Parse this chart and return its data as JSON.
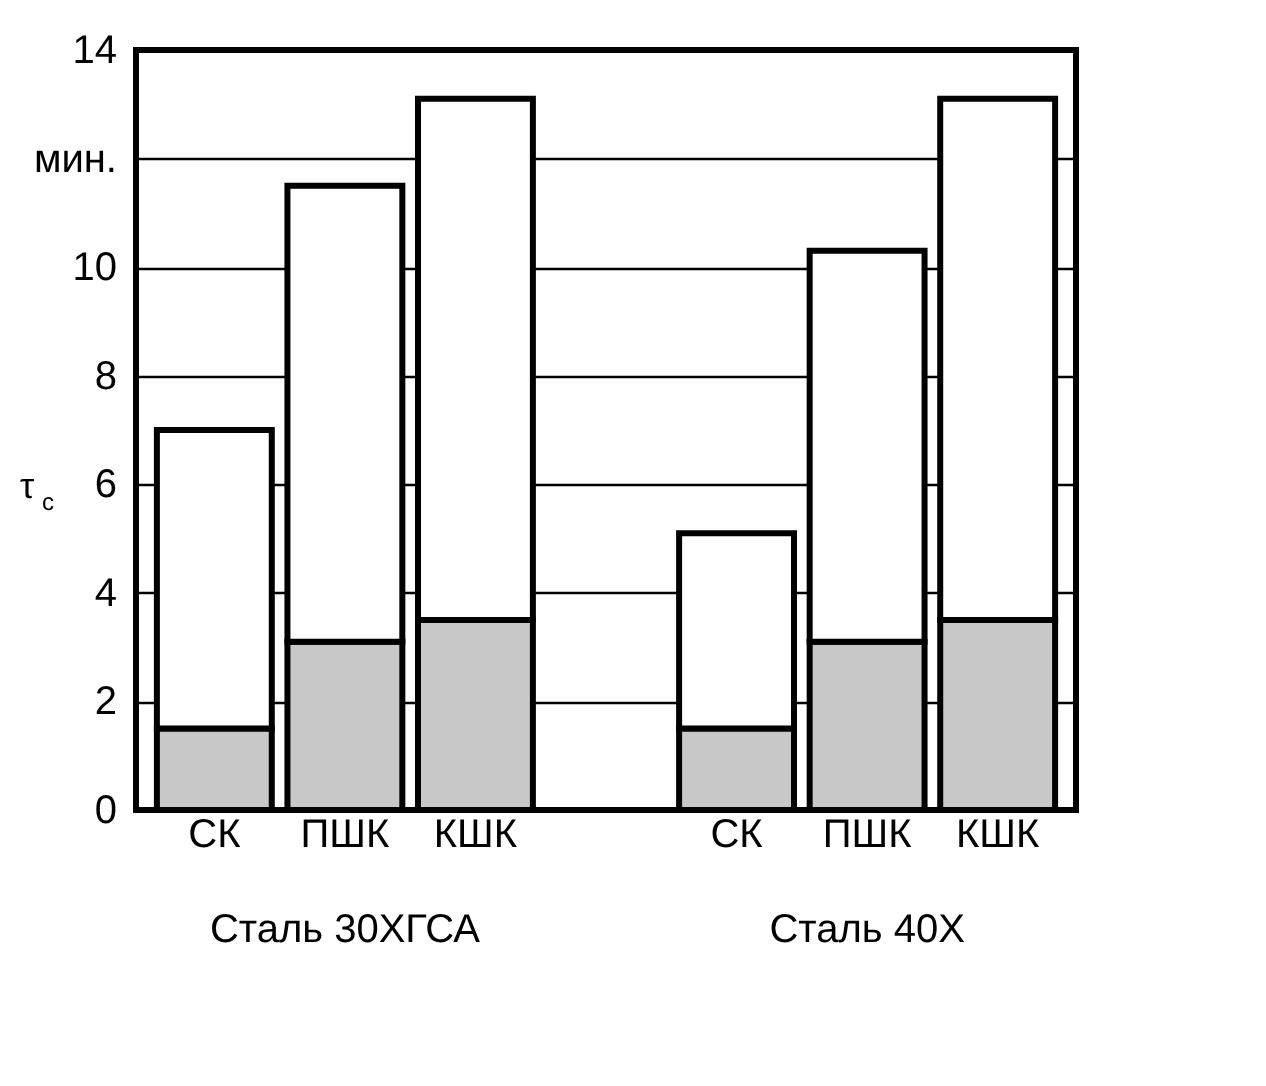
{
  "chart_data": {
    "type": "bar",
    "stacked": true,
    "categories": [
      "СК",
      "ПШК",
      "КШК",
      null,
      "СК",
      "ПШК",
      "КШК"
    ],
    "series": [
      {
        "color": "#c8c8c8",
        "values": [
          1.5,
          3.1,
          3.5,
          null,
          1.5,
          3.1,
          3.5
        ]
      },
      {
        "color": "#ffffff",
        "values": [
          5.5,
          8.4,
          9.6,
          null,
          3.6,
          7.2,
          9.6
        ]
      }
    ],
    "ylabel": "τ$_{c}$",
    "ylim": [
      0,
      14
    ],
    "yticks": [
      0,
      2,
      4,
      6,
      8,
      10,
      {
        "value": 12,
        "label": "мин."
      },
      14
    ],
    "grid": "y",
    "annotations": [
      "Сталь 30ХГСА",
      "Сталь 40Х"
    ]
  }
}
